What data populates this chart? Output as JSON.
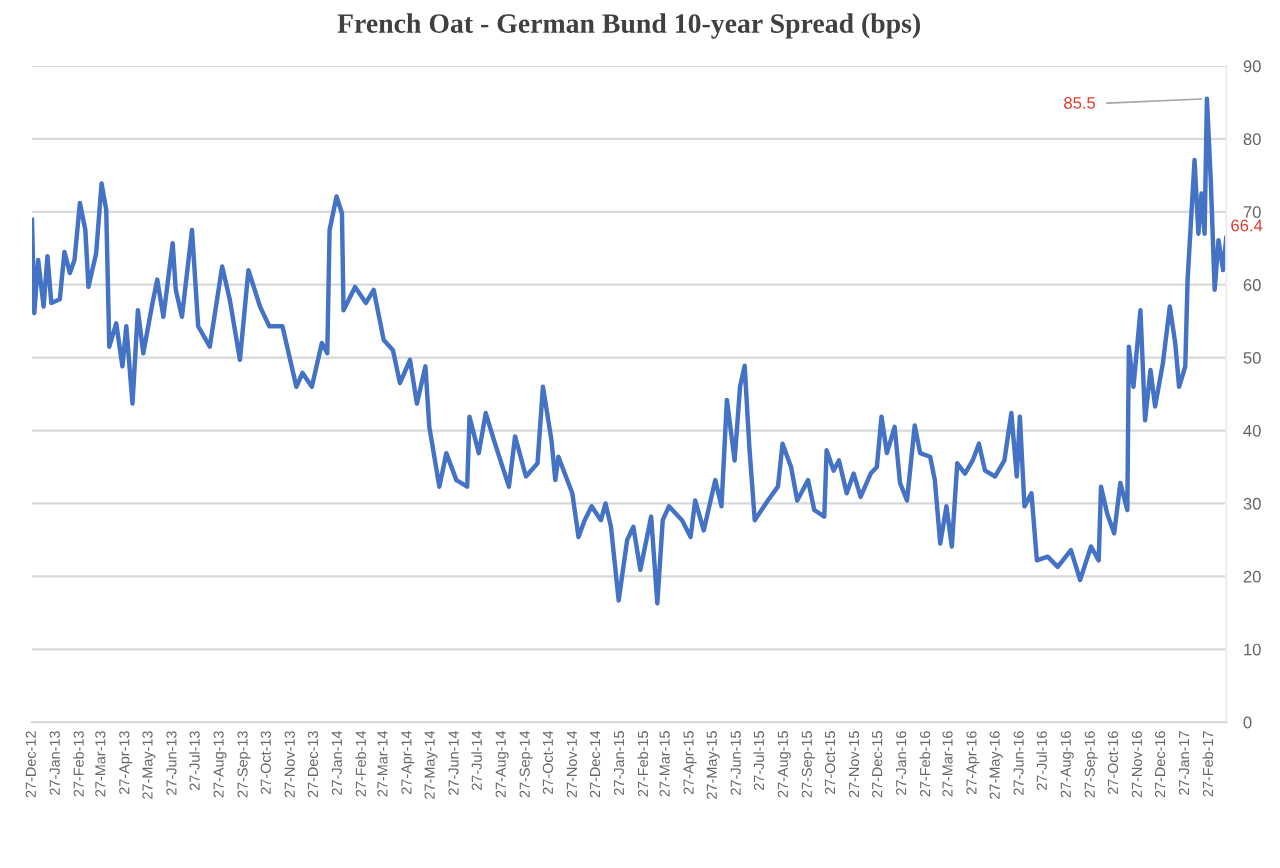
{
  "chart_data": {
    "type": "line",
    "title": "French Oat - German Bund 10-year Spread (bps)",
    "x": [
      "2012-12-27",
      "2012-12-30",
      "2013-01-04",
      "2013-01-11",
      "2013-01-16",
      "2013-01-21",
      "2013-02-01",
      "2013-02-07",
      "2013-02-14",
      "2013-02-20",
      "2013-02-27",
      "2013-03-06",
      "2013-03-10",
      "2013-03-20",
      "2013-03-27",
      "2013-04-02",
      "2013-04-06",
      "2013-04-15",
      "2013-04-23",
      "2013-04-28",
      "2013-05-06",
      "2013-05-13",
      "2013-05-20",
      "2013-05-31",
      "2013-06-07",
      "2013-06-15",
      "2013-06-27",
      "2013-07-01",
      "2013-07-09",
      "2013-07-22",
      "2013-07-30",
      "2013-08-14",
      "2013-08-30",
      "2013-09-09",
      "2013-09-22",
      "2013-10-03",
      "2013-10-18",
      "2013-10-30",
      "2013-11-16",
      "2013-12-04",
      "2013-12-12",
      "2013-12-24",
      "2014-01-06",
      "2014-01-13",
      "2014-01-16",
      "2014-01-25",
      "2014-02-01",
      "2014-02-03",
      "2014-02-18",
      "2014-03-04",
      "2014-03-14",
      "2014-03-27",
      "2014-04-08",
      "2014-04-17",
      "2014-04-30",
      "2014-05-09",
      "2014-05-20",
      "2014-05-25",
      "2014-06-07",
      "2014-06-16",
      "2014-06-29",
      "2014-07-13",
      "2014-07-16",
      "2014-07-28",
      "2014-08-06",
      "2014-08-18",
      "2014-09-05",
      "2014-09-13",
      "2014-09-27",
      "2014-10-12",
      "2014-10-19",
      "2014-10-30",
      "2014-11-04",
      "2014-11-08",
      "2014-11-26",
      "2014-12-04",
      "2014-12-12",
      "2014-12-21",
      "2015-01-02",
      "2015-01-08",
      "2015-01-15",
      "2015-01-25",
      "2015-02-05",
      "2015-02-13",
      "2015-02-22",
      "2015-03-08",
      "2015-03-16",
      "2015-03-23",
      "2015-03-31",
      "2015-04-17",
      "2015-04-28",
      "2015-05-04",
      "2015-05-15",
      "2015-05-30",
      "2015-06-07",
      "2015-06-14",
      "2015-06-24",
      "2015-07-01",
      "2015-07-07",
      "2015-07-13",
      "2015-07-20",
      "2015-08-06",
      "2015-08-19",
      "2015-08-25",
      "2015-09-05",
      "2015-09-13",
      "2015-09-27",
      "2015-10-05",
      "2015-10-18",
      "2015-10-21",
      "2015-10-30",
      "2015-11-06",
      "2015-11-16",
      "2015-11-25",
      "2015-12-04",
      "2015-12-17",
      "2015-12-25",
      "2015-12-31",
      "2016-01-07",
      "2016-01-17",
      "2016-01-24",
      "2016-02-02",
      "2016-02-12",
      "2016-02-19",
      "2016-03-03",
      "2016-03-09",
      "2016-03-16",
      "2016-03-24",
      "2016-03-31",
      "2016-04-07",
      "2016-04-17",
      "2016-04-27",
      "2016-05-05",
      "2016-05-13",
      "2016-05-26",
      "2016-06-07",
      "2016-06-16",
      "2016-06-23",
      "2016-06-27",
      "2016-07-03",
      "2016-07-12",
      "2016-07-19",
      "2016-08-02",
      "2016-08-15",
      "2016-09-01",
      "2016-09-13",
      "2016-09-27",
      "2016-10-07",
      "2016-10-10",
      "2016-10-18",
      "2016-10-27",
      "2016-11-04",
      "2016-11-13",
      "2016-11-15",
      "2016-11-21",
      "2016-11-30",
      "2016-12-06",
      "2016-12-13",
      "2016-12-19",
      "2016-12-29",
      "2017-01-07",
      "2017-01-14",
      "2017-01-19",
      "2017-01-27",
      "2017-01-30",
      "2017-02-08",
      "2017-02-13",
      "2017-02-17",
      "2017-02-21",
      "2017-02-24",
      "2017-03-01",
      "2017-03-06",
      "2017-03-11",
      "2017-03-17",
      "2017-03-21"
    ],
    "series": [
      {
        "color": "#4472c4",
        "values": [
          68.9,
          56.1,
          63.4,
          57,
          63.9,
          57.5,
          58,
          64.5,
          61.6,
          63.4,
          71.2,
          67.5,
          59.7,
          64.3,
          73.9,
          70.3,
          51.5,
          54.7,
          48.8,
          54.3,
          43.7,
          56.5,
          50.6,
          57,
          60.7,
          55.6,
          65.7,
          59.3,
          55.6,
          67.5,
          54.3,
          51.5,
          62.5,
          57.9,
          49.7,
          62,
          57,
          54.3,
          54.3,
          46,
          47.9,
          46,
          52,
          50.6,
          67.5,
          72.1,
          69.8,
          56.5,
          59.7,
          57.5,
          59.3,
          52.4,
          51,
          46.5,
          49.7,
          43.7,
          48.8,
          40.5,
          32.3,
          36.9,
          33.2,
          32.3,
          41.9,
          36.9,
          42.4,
          38.2,
          32.3,
          39.2,
          33.7,
          35.5,
          46,
          38.7,
          33.2,
          36.4,
          31.4,
          25.4,
          27.7,
          29.6,
          27.7,
          30,
          26.8,
          16.7,
          25,
          26.8,
          20.9,
          28.2,
          16.3,
          27.7,
          29.6,
          27.7,
          25.4,
          30.4,
          26.3,
          33.2,
          29.6,
          44.2,
          35.9,
          46,
          48.9,
          37.8,
          27.7,
          30.4,
          32.3,
          38.2,
          35,
          30.4,
          33.2,
          29.1,
          28.2,
          37.3,
          34.5,
          35.9,
          31.4,
          34.1,
          30.9,
          34.1,
          35,
          41.9,
          36.9,
          40.5,
          32.8,
          30.4,
          40.7,
          36.9,
          36.4,
          33.2,
          24.5,
          29.6,
          24.1,
          35.5,
          34.1,
          35.9,
          38.2,
          34.5,
          33.7,
          35.9,
          42.4,
          33.7,
          41.9,
          29.6,
          31.4,
          22.2,
          22.7,
          21.3,
          23.6,
          19.5,
          24.1,
          22.2,
          32.3,
          28.6,
          25.9,
          32.8,
          29.1,
          51.5,
          46,
          56.5,
          41.4,
          48.3,
          43.3,
          49.2,
          57,
          52,
          46,
          48.8,
          60.7,
          77.1,
          67,
          72.5,
          67,
          85.5,
          74.3,
          59.3,
          66.1,
          62,
          66.4
        ]
      }
    ],
    "xlim": [
      "2012-12-27",
      "2017-03-21"
    ],
    "xticks": [
      {
        "value": "2012-12-27",
        "label": "27-Dec-12"
      },
      {
        "value": "2013-01-27",
        "label": "27-Jan-13"
      },
      {
        "value": "2013-02-27",
        "label": "27-Feb-13"
      },
      {
        "value": "2013-03-27",
        "label": "27-Mar-13"
      },
      {
        "value": "2013-04-27",
        "label": "27-Apr-13"
      },
      {
        "value": "2013-05-27",
        "label": "27-May-13"
      },
      {
        "value": "2013-06-27",
        "label": "27-Jun-13"
      },
      {
        "value": "2013-07-27",
        "label": "27-Jul-13"
      },
      {
        "value": "2013-08-27",
        "label": "27-Aug-13"
      },
      {
        "value": "2013-09-27",
        "label": "27-Sep-13"
      },
      {
        "value": "2013-10-27",
        "label": "27-Oct-13"
      },
      {
        "value": "2013-11-27",
        "label": "27-Nov-13"
      },
      {
        "value": "2013-12-27",
        "label": "27-Dec-13"
      },
      {
        "value": "2014-01-27",
        "label": "27-Jan-14"
      },
      {
        "value": "2014-02-27",
        "label": "27-Feb-14"
      },
      {
        "value": "2014-03-27",
        "label": "27-Mar-14"
      },
      {
        "value": "2014-04-27",
        "label": "27-Apr-14"
      },
      {
        "value": "2014-05-27",
        "label": "27-May-14"
      },
      {
        "value": "2014-06-27",
        "label": "27-Jun-14"
      },
      {
        "value": "2014-07-27",
        "label": "27-Jul-14"
      },
      {
        "value": "2014-08-27",
        "label": "27-Aug-14"
      },
      {
        "value": "2014-09-27",
        "label": "27-Sep-14"
      },
      {
        "value": "2014-10-27",
        "label": "27-Oct-14"
      },
      {
        "value": "2014-11-27",
        "label": "27-Nov-14"
      },
      {
        "value": "2014-12-27",
        "label": "27-Dec-14"
      },
      {
        "value": "2015-01-27",
        "label": "27-Jan-15"
      },
      {
        "value": "2015-02-27",
        "label": "27-Feb-15"
      },
      {
        "value": "2015-03-27",
        "label": "27-Mar-15"
      },
      {
        "value": "2015-04-27",
        "label": "27-Apr-15"
      },
      {
        "value": "2015-05-27",
        "label": "27-May-15"
      },
      {
        "value": "2015-06-27",
        "label": "27-Jun-15"
      },
      {
        "value": "2015-07-27",
        "label": "27-Jul-15"
      },
      {
        "value": "2015-08-27",
        "label": "27-Aug-15"
      },
      {
        "value": "2015-09-27",
        "label": "27-Sep-15"
      },
      {
        "value": "2015-10-27",
        "label": "27-Oct-15"
      },
      {
        "value": "2015-11-27",
        "label": "27-Nov-15"
      },
      {
        "value": "2015-12-27",
        "label": "27-Dec-15"
      },
      {
        "value": "2016-01-27",
        "label": "27-Jan-16"
      },
      {
        "value": "2016-02-27",
        "label": "27-Feb-16"
      },
      {
        "value": "2016-03-27",
        "label": "27-Mar-16"
      },
      {
        "value": "2016-04-27",
        "label": "27-Apr-16"
      },
      {
        "value": "2016-05-27",
        "label": "27-May-16"
      },
      {
        "value": "2016-06-27",
        "label": "27-Jun-16"
      },
      {
        "value": "2016-07-27",
        "label": "27-Jul-16"
      },
      {
        "value": "2016-08-27",
        "label": "27-Aug-16"
      },
      {
        "value": "2016-09-27",
        "label": "27-Sep-16"
      },
      {
        "value": "2016-10-27",
        "label": "27-Oct-16"
      },
      {
        "value": "2016-11-27",
        "label": "27-Nov-16"
      },
      {
        "value": "2016-12-27",
        "label": "27-Dec-16"
      },
      {
        "value": "2017-01-27",
        "label": "27-Jan-17"
      },
      {
        "value": "2017-02-27",
        "label": "27-Feb-17"
      }
    ],
    "ylim": [
      0,
      90
    ],
    "yticks": [
      0,
      10,
      20,
      30,
      40,
      50,
      60,
      70,
      80,
      90
    ],
    "grid": "y",
    "marker": "none",
    "line_style": "solid",
    "annotations": [
      {
        "text": "85.5",
        "x": "2017-02-24",
        "y": 85.5
      },
      {
        "text": "66.4",
        "x": "2017-03-21",
        "y": 66.4
      }
    ]
  }
}
